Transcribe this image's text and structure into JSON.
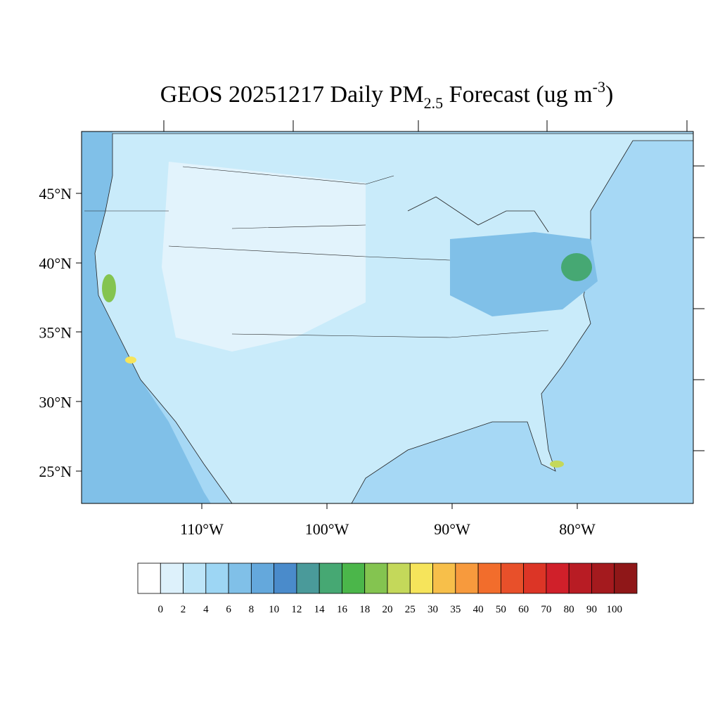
{
  "title": {
    "main": "GEOS 20251217 Daily PM",
    "sub": "2.5",
    "mid": " Forecast (ug m",
    "sup": "-3",
    "end": ")"
  },
  "map": {
    "lat_labels": [
      "45°N",
      "40°N",
      "35°N",
      "30°N",
      "25°N"
    ],
    "lon_labels": [
      "110°W",
      "100°W",
      "90°W",
      "80°W"
    ]
  },
  "colorbar": {
    "colors": [
      "#ffffff",
      "#ddf1fb",
      "#bde5f8",
      "#9dd6f4",
      "#80c0e8",
      "#64a8dc",
      "#4a8bcb",
      "#4a9a9a",
      "#46a873",
      "#4bb64a",
      "#84c450",
      "#c4d85a",
      "#f6e45b",
      "#f7bf4a",
      "#f79a3d",
      "#f26d2c",
      "#e8502a",
      "#dc3526",
      "#d0202a",
      "#b81c24",
      "#a41a1e",
      "#8f1718"
    ],
    "labels": [
      "0",
      "2",
      "4",
      "6",
      "8",
      "10",
      "12",
      "14",
      "16",
      "18",
      "20",
      "25",
      "30",
      "35",
      "40",
      "50",
      "60",
      "70",
      "80",
      "90",
      "100"
    ]
  }
}
